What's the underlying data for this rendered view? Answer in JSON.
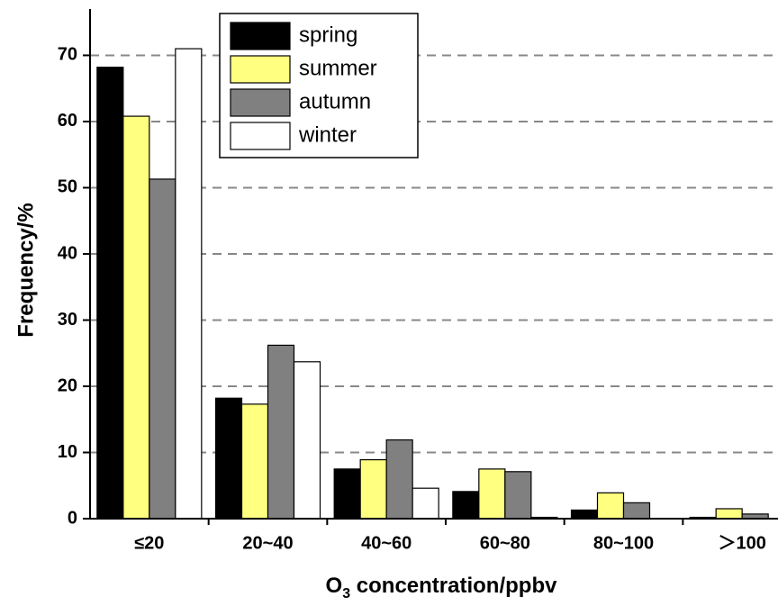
{
  "chart_data": {
    "type": "bar",
    "ylabel": "Frequency/%",
    "xlabel": {
      "main": "O",
      "sub": "3",
      "rest": " concentration/ppbv"
    },
    "categories": [
      "≤20",
      "20~40",
      "40~60",
      "60~80",
      "80~100",
      "＞100"
    ],
    "series": [
      {
        "name": "spring",
        "color": "#000000",
        "values": [
          68.2,
          18.2,
          7.5,
          4.1,
          1.3,
          0.2
        ]
      },
      {
        "name": "summer",
        "color": "#ffff80",
        "values": [
          60.8,
          17.3,
          8.9,
          7.5,
          3.9,
          1.5
        ]
      },
      {
        "name": "autumn",
        "color": "#808080",
        "values": [
          51.3,
          26.2,
          11.9,
          7.1,
          2.4,
          0.7
        ]
      },
      {
        "name": "winter",
        "color": "#ffffff",
        "values": [
          71.0,
          23.7,
          4.6,
          0.2,
          0,
          0
        ]
      }
    ],
    "ylim": [
      0,
      77
    ],
    "yticks": [
      0,
      10,
      20,
      30,
      40,
      50,
      60,
      70
    ],
    "grid": true,
    "legend": "upper-center"
  }
}
